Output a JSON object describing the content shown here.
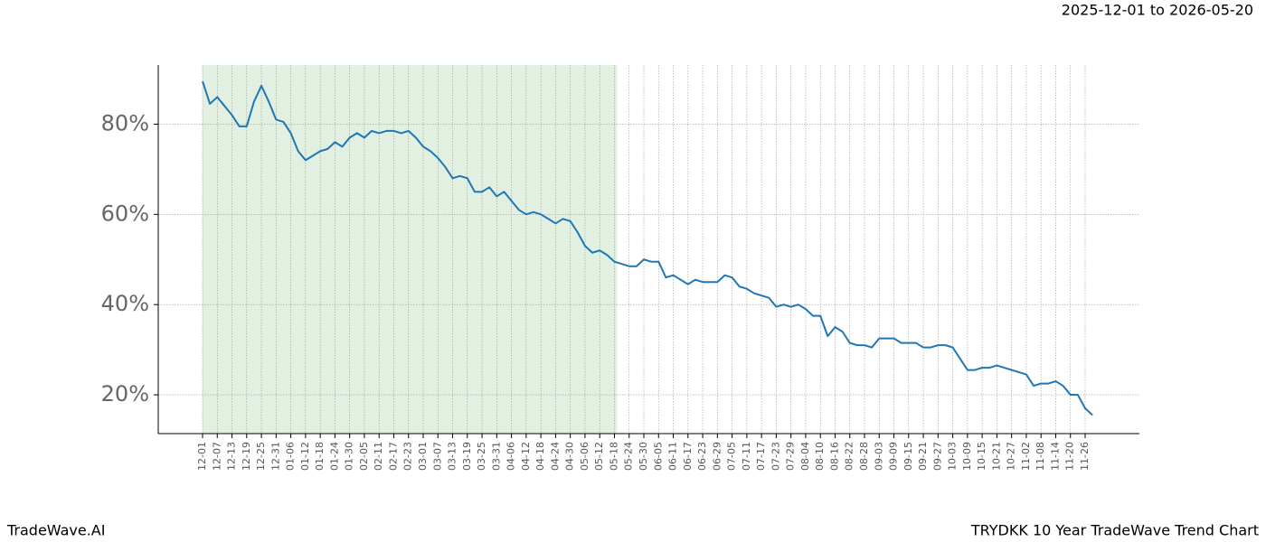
{
  "chart_data": {
    "type": "line",
    "subtitle": "2025-12-01 to 2026-05-20",
    "footer_left": "TradeWave.AI",
    "footer_right": "TRYDKK 10 Year TradeWave Trend Chart",
    "categories": [
      "12-01",
      null,
      "12-07",
      null,
      "12-13",
      null,
      "12-19",
      null,
      "12-25",
      null,
      "12-31",
      null,
      "01-06",
      null,
      "01-12",
      null,
      "01-18",
      null,
      "01-24",
      null,
      "01-30",
      null,
      "02-05",
      null,
      "02-11",
      null,
      "02-17",
      null,
      "02-23",
      null,
      "03-01",
      null,
      "03-07",
      null,
      "03-13",
      null,
      "03-19",
      null,
      "03-25",
      null,
      "03-31",
      null,
      "04-06",
      null,
      "04-12",
      null,
      "04-18",
      null,
      "04-24",
      null,
      "04-30",
      null,
      "05-06",
      null,
      "05-12",
      null,
      "05-18",
      null,
      "05-24",
      null,
      "05-30",
      null,
      "06-05",
      null,
      "06-11",
      null,
      "06-17",
      null,
      "06-23",
      null,
      "06-29",
      null,
      "07-05",
      null,
      "07-11",
      null,
      "07-17",
      null,
      "07-23",
      null,
      "07-29",
      null,
      "08-04",
      null,
      "08-10",
      null,
      "08-16",
      null,
      "08-22",
      null,
      "08-28",
      null,
      "09-03",
      null,
      "09-09",
      null,
      "09-15",
      null,
      "09-21",
      null,
      "09-27",
      null,
      "10-03",
      null,
      "10-09",
      null,
      "10-15",
      null,
      "10-21",
      null,
      "10-27",
      null,
      "11-02",
      null,
      "11-08",
      null,
      "11-14",
      null,
      "11-20",
      null,
      "11-26",
      null
    ],
    "values": [
      89.5,
      84.5,
      86,
      84,
      82,
      79.5,
      79.5,
      85,
      88.5,
      85,
      81,
      80.5,
      78,
      74,
      72,
      73,
      74,
      74.5,
      76,
      75,
      77,
      78,
      77,
      78.5,
      78,
      78.5,
      78.5,
      78,
      78.5,
      77,
      75,
      74,
      72.5,
      70.5,
      68,
      68.5,
      68,
      65,
      65,
      66,
      64,
      65,
      63,
      61,
      60,
      60.5,
      60,
      59,
      58,
      59,
      58.5,
      56,
      53,
      51.5,
      52,
      51,
      49.5,
      49,
      48.5,
      48.5,
      50,
      49.5,
      49.5,
      46,
      46.5,
      45.5,
      44.5,
      45.5,
      45,
      45,
      45,
      46.5,
      46,
      44,
      43.5,
      42.5,
      42,
      41.5,
      39.5,
      40,
      39.5,
      40,
      39,
      37.5,
      37.5,
      33,
      35,
      34,
      31.5,
      31,
      31,
      30.5,
      32.5,
      32.5,
      32.5,
      31.5,
      31.5,
      31.5,
      30.5,
      30.5,
      31,
      31,
      30.5,
      28,
      25.5,
      25.5,
      26,
      26,
      26.5,
      26,
      25.5,
      25,
      24.5,
      22,
      22.5,
      22.5,
      23,
      22,
      20,
      20,
      17,
      15.5
    ],
    "color": "#1f77b4",
    "shade_color": "#d6ead6",
    "shaded": [
      0,
      56
    ],
    "ylim": [
      11.4,
      93.1
    ],
    "yticks": [
      {
        "value": 20,
        "label": "20%"
      },
      {
        "value": 40,
        "label": "40%"
      },
      {
        "value": 60,
        "label": "60%"
      },
      {
        "value": 80,
        "label": "80%"
      }
    ],
    "grid": true
  }
}
